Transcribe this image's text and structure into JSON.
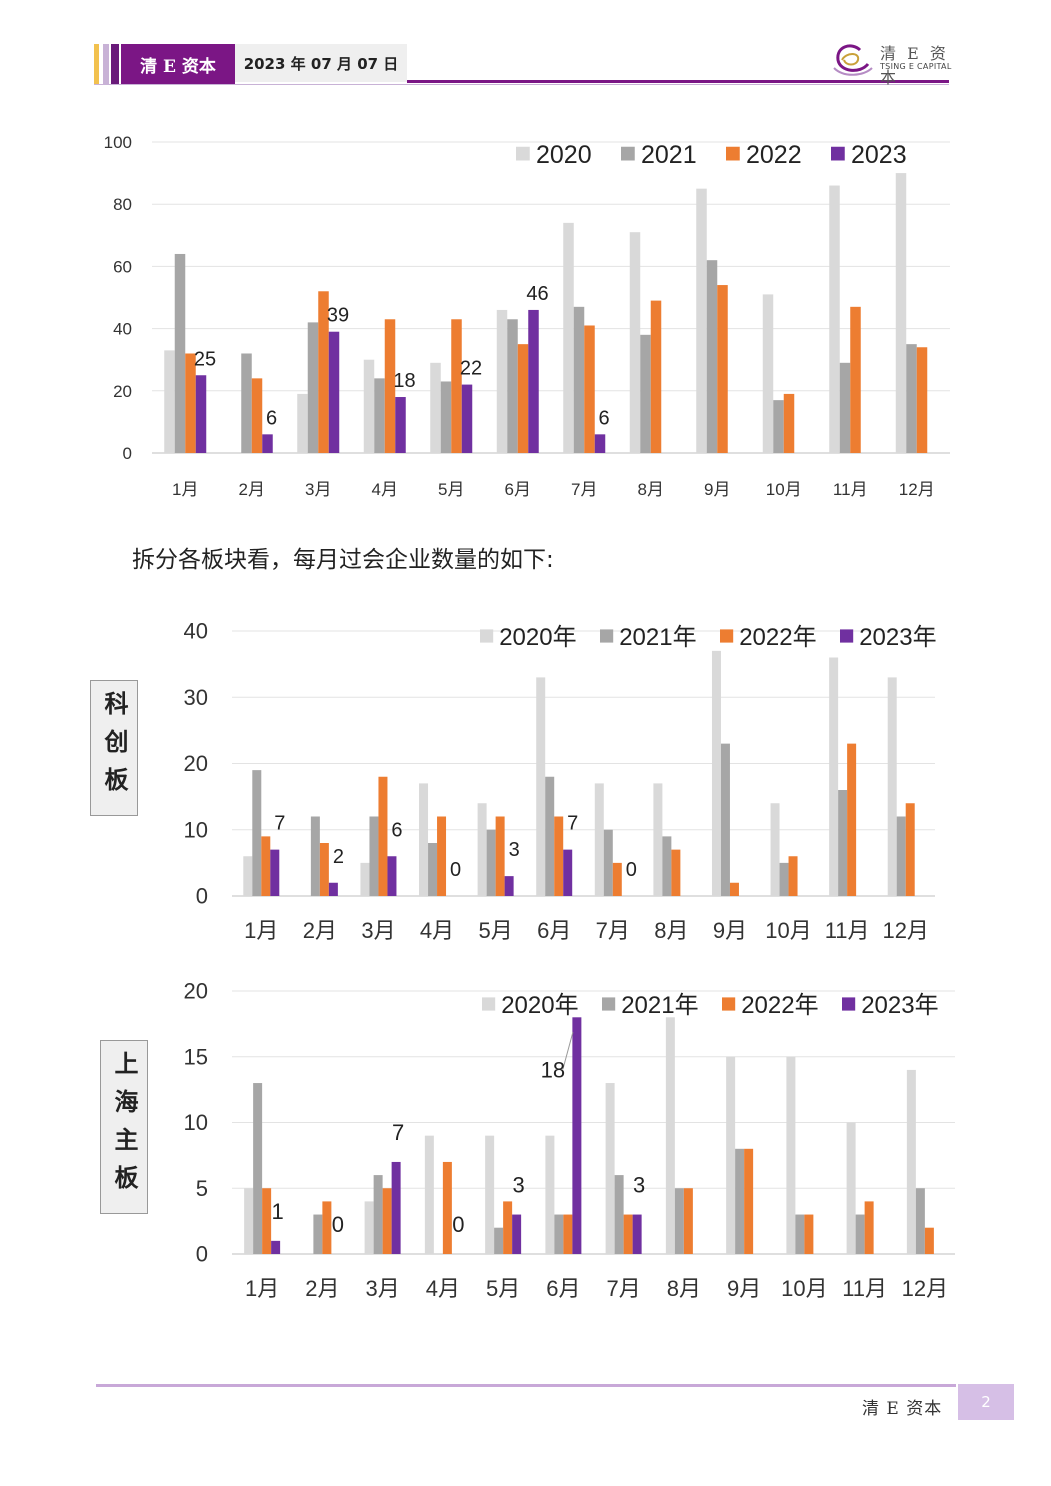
{
  "header": {
    "brand": "清 E 资本",
    "date": "2023 年 07 月 07 日",
    "logo_name": "清 E 资本",
    "logo_sub": "TSING E CAPITAL"
  },
  "intro_text": "拆分各板块看，每月过会企业数量的如下:",
  "footer": {
    "brand": "清 E 资本",
    "page": "2"
  },
  "colors": {
    "accent": "#7b1685",
    "s2020": "#d9d9d9",
    "s2021": "#a6a6a6",
    "s2022": "#ed7d31",
    "s2023": "#7030a0"
  },
  "sections": {
    "kechuang": "科创板",
    "shanghai": "上海主板"
  },
  "charts": {
    "total": {
      "chart_data": {
        "type": "bar",
        "categories": [
          "1月",
          "2月",
          "3月",
          "4月",
          "5月",
          "6月",
          "7月",
          "8月",
          "9月",
          "10月",
          "11月",
          "12月"
        ],
        "series": [
          {
            "name": "2020",
            "values": [
              33,
              null,
              19,
              30,
              29,
              46,
              74,
              71,
              85,
              51,
              86,
              90
            ]
          },
          {
            "name": "2021",
            "values": [
              64,
              32,
              42,
              24,
              23,
              43,
              47,
              38,
              62,
              17,
              29,
              35
            ]
          },
          {
            "name": "2022",
            "values": [
              32,
              24,
              52,
              43,
              43,
              35,
              41,
              49,
              54,
              19,
              47,
              34
            ]
          },
          {
            "name": "2023",
            "values": [
              25,
              6,
              39,
              18,
              22,
              46,
              6,
              null,
              null,
              null,
              null,
              null
            ]
          }
        ],
        "data_labels": {
          "series": "2023",
          "values": [
            25,
            6,
            39,
            18,
            22,
            46,
            6
          ]
        },
        "yticks": [
          0,
          20,
          40,
          60,
          80,
          100
        ],
        "ylim": [
          0,
          100
        ],
        "grid": true,
        "legend_position": "top-right"
      }
    },
    "kechuang": {
      "chart_data": {
        "type": "bar",
        "categories": [
          "1月",
          "2月",
          "3月",
          "4月",
          "5月",
          "6月",
          "7月",
          "8月",
          "9月",
          "10月",
          "11月",
          "12月"
        ],
        "series": [
          {
            "name": "2020年",
            "values": [
              6,
              null,
              5,
              17,
              14,
              33,
              17,
              17,
              37,
              14,
              36,
              33
            ]
          },
          {
            "name": "2021年",
            "values": [
              19,
              12,
              12,
              8,
              10,
              18,
              10,
              9,
              23,
              5,
              16,
              12
            ]
          },
          {
            "name": "2022年",
            "values": [
              9,
              8,
              18,
              12,
              12,
              12,
              5,
              7,
              2,
              6,
              23,
              14
            ]
          },
          {
            "name": "2023年",
            "values": [
              7,
              2,
              6,
              0,
              3,
              7,
              0,
              null,
              null,
              null,
              null,
              null
            ]
          }
        ],
        "data_labels": {
          "series": "2023年",
          "values": [
            7,
            2,
            6,
            0,
            3,
            7,
            0
          ]
        },
        "yticks": [
          0,
          10,
          20,
          30,
          40
        ],
        "ylim": [
          0,
          40
        ],
        "grid": true,
        "legend_position": "top-right"
      }
    },
    "shanghai": {
      "chart_data": {
        "type": "bar",
        "categories": [
          "1月",
          "2月",
          "3月",
          "4月",
          "5月",
          "6月",
          "7月",
          "8月",
          "9月",
          "10月",
          "11月",
          "12月"
        ],
        "series": [
          {
            "name": "2020年",
            "values": [
              5,
              null,
              4,
              9,
              9,
              9,
              13,
              18,
              15,
              15,
              10,
              14
            ]
          },
          {
            "name": "2021年",
            "values": [
              13,
              3,
              6,
              null,
              2,
              3,
              6,
              5,
              8,
              3,
              3,
              5
            ]
          },
          {
            "name": "2022年",
            "values": [
              5,
              4,
              5,
              7,
              4,
              3,
              3,
              5,
              8,
              3,
              4,
              2
            ]
          },
          {
            "name": "2023年",
            "values": [
              1,
              0,
              7,
              0,
              3,
              18,
              3,
              null,
              null,
              null,
              null,
              null
            ]
          }
        ],
        "data_labels": {
          "series": "2023年",
          "values": [
            1,
            0,
            7,
            0,
            3,
            18,
            3
          ]
        },
        "yticks": [
          0,
          5,
          10,
          15,
          20
        ],
        "ylim": [
          0,
          20
        ],
        "grid": true,
        "legend_position": "top-right"
      }
    }
  }
}
